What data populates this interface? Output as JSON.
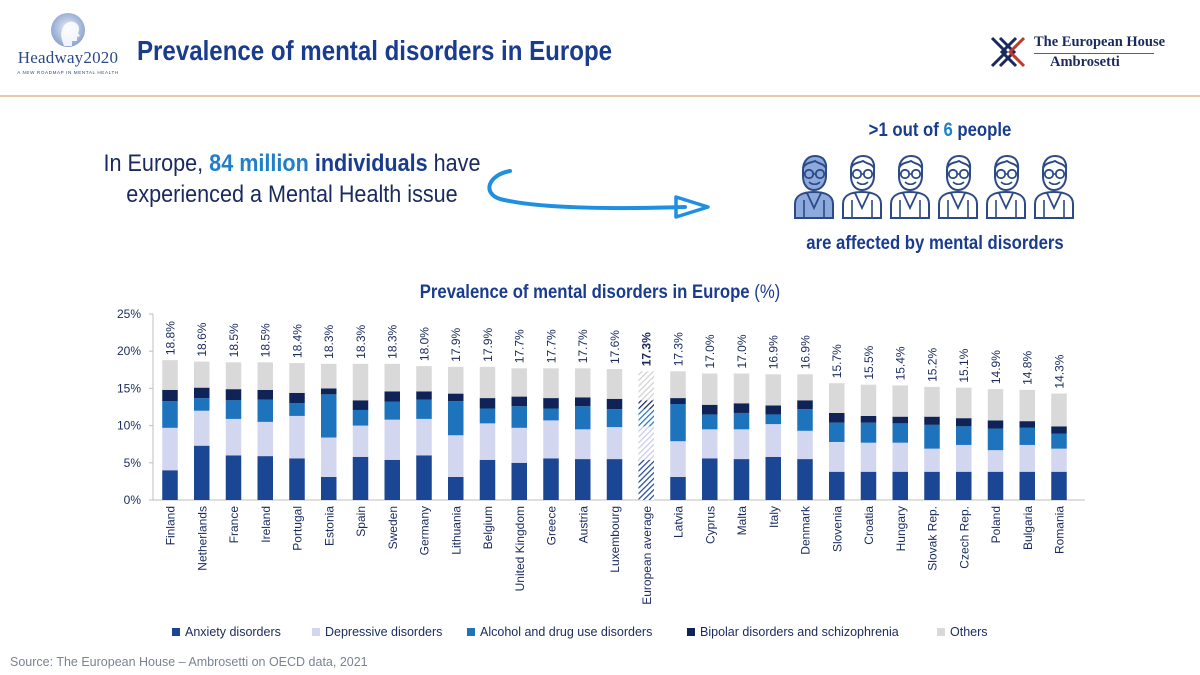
{
  "header": {
    "logo_left_text": "Headway2020",
    "logo_left_tagline": "A NEW ROADMAP IN MENTAL HEALTH",
    "title": "Prevalence of mental disorders in Europe",
    "logo_right_line1": "The European House",
    "logo_right_line2": "Ambrosetti"
  },
  "intro": {
    "part1": "In Europe,",
    "highlight1": "84 million",
    "highlight2": "individuals",
    "part2": "have",
    "line2": "experienced a Mental Health issue"
  },
  "people": {
    "top_prefix": ">1 out of",
    "top_number": "6",
    "top_suffix": "people",
    "bottom": "are affected by mental disorders",
    "count": 6
  },
  "colors": {
    "anxiety": "#1b4694",
    "depressive": "#d3d6ef",
    "alcohol": "#1d74bd",
    "bipolar": "#0f2357",
    "others": "#d9d9d9",
    "accent": "#1f7fc7",
    "title": "#1a3c8e"
  },
  "chart_data": {
    "type": "bar",
    "stacked": true,
    "title": "Prevalence of mental disorders in Europe",
    "title_unit": "(%)",
    "ylabel": "",
    "ylim": [
      0,
      25
    ],
    "yticks": [
      "0%",
      "5%",
      "10%",
      "15%",
      "20%",
      "25%"
    ],
    "categories": [
      "Finland",
      "Netherlands",
      "France",
      "Ireland",
      "Portugal",
      "Estonia",
      "Spain",
      "Sweden",
      "Germany",
      "Lithuania",
      "Belgium",
      "United Kingdom",
      "Greece",
      "Austria",
      "Luxembourg",
      "European average",
      "Latvia",
      "Cyprus",
      "Malta",
      "Italy",
      "Denmark",
      "Slovenia",
      "Croatia",
      "Hungary",
      "Slovak Rep.",
      "Czech Rep.",
      "Poland",
      "Bulgaria",
      "Romania"
    ],
    "totals_labels": [
      "18.8%",
      "18.6%",
      "18.5%",
      "18.5%",
      "18.4%",
      "18.3%",
      "18.3%",
      "18.3%",
      "18.0%",
      "17.9%",
      "17.9%",
      "17.7%",
      "17.7%",
      "17.7%",
      "17.6%",
      "17.3%",
      "17.3%",
      "17.0%",
      "17.0%",
      "16.9%",
      "16.9%",
      "15.7%",
      "15.5%",
      "15.4%",
      "15.2%",
      "15.1%",
      "14.9%",
      "14.8%",
      "14.3%"
    ],
    "highlight_category": "European average",
    "series": [
      {
        "name": "Anxiety disorders",
        "values": [
          4.0,
          7.3,
          6.0,
          5.9,
          5.6,
          3.1,
          5.8,
          5.4,
          6.0,
          3.1,
          5.4,
          5.0,
          5.6,
          5.5,
          5.5,
          5.4,
          3.1,
          5.6,
          5.5,
          5.8,
          5.5,
          3.8,
          3.8,
          3.8,
          3.8,
          3.8,
          3.8,
          3.8,
          3.8
        ]
      },
      {
        "name": "Depressive disorders",
        "values": [
          5.7,
          4.7,
          4.9,
          4.6,
          5.7,
          5.3,
          4.2,
          5.4,
          4.9,
          5.6,
          4.9,
          4.7,
          5.1,
          4.0,
          4.3,
          4.5,
          4.8,
          3.9,
          4.0,
          4.4,
          3.8,
          4.0,
          3.9,
          3.9,
          3.1,
          3.6,
          2.9,
          3.6,
          3.1
        ]
      },
      {
        "name": "Alcohol and drug use disorders",
        "values": [
          3.6,
          1.7,
          2.5,
          3.0,
          1.7,
          5.8,
          2.1,
          2.4,
          2.6,
          4.6,
          2.0,
          2.9,
          1.6,
          3.1,
          2.4,
          2.3,
          5.0,
          2.0,
          2.2,
          1.3,
          2.9,
          2.6,
          2.7,
          2.6,
          3.2,
          2.5,
          2.9,
          2.3,
          2.0
        ]
      },
      {
        "name": "Bipolar disorders and schizophrenia",
        "values": [
          1.5,
          1.4,
          1.5,
          1.3,
          1.4,
          0.8,
          1.3,
          1.4,
          1.1,
          1.0,
          1.4,
          1.3,
          1.4,
          1.2,
          1.4,
          1.2,
          0.8,
          1.3,
          1.3,
          1.2,
          1.2,
          1.3,
          0.9,
          0.9,
          1.1,
          1.1,
          1.1,
          0.9,
          1.0
        ]
      },
      {
        "name": "Others",
        "values": [
          4.0,
          3.5,
          3.6,
          3.7,
          4.0,
          3.3,
          4.9,
          3.7,
          3.4,
          3.6,
          4.2,
          3.8,
          4.0,
          3.9,
          4.0,
          3.9,
          3.6,
          4.2,
          4.0,
          4.2,
          3.5,
          4.0,
          4.2,
          4.2,
          4.0,
          4.1,
          4.2,
          4.2,
          4.4
        ]
      }
    ],
    "legend_position": "bottom"
  },
  "source": "Source: The European House – Ambrosetti on OECD data, 2021"
}
